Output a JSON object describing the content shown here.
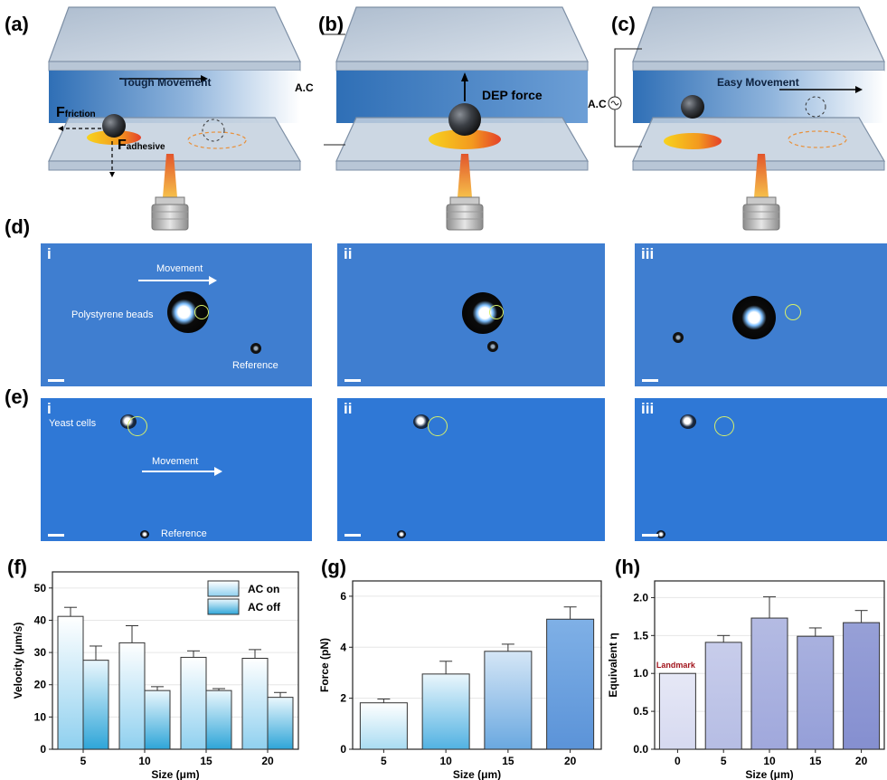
{
  "panel_labels": {
    "a": "(a)",
    "b": "(b)",
    "c": "(c)",
    "d": "(d)",
    "e": "(e)",
    "f": "(f)",
    "g": "(g)",
    "h": "(h)"
  },
  "schematic": {
    "a": {
      "movement": "Tough Movement",
      "friction_F": "F",
      "friction_sub": "friction",
      "adhesive_F": "F",
      "adhesive_sub": "adhesive"
    },
    "b": {
      "force": "DEP force",
      "ac": "A.C"
    },
    "c": {
      "movement": "Easy Movement",
      "ac": "A.C"
    }
  },
  "micro_d": {
    "roman": [
      "i",
      "ii",
      "iii"
    ],
    "movement": "Movement",
    "beads": "Polystyrene beads",
    "reference": "Reference"
  },
  "micro_e": {
    "roman": [
      "i",
      "ii",
      "iii"
    ],
    "cells": "Yeast cells",
    "movement": "Movement",
    "reference": "Reference"
  },
  "colors": {
    "micro_d_bg": "#3f7ed0",
    "micro_e_bg": "#2f78d6",
    "channel_blue": "#2f6fb6"
  },
  "chart_data": [
    {
      "type": "bar",
      "panel": "f",
      "categories": [
        "5",
        "10",
        "15",
        "20"
      ],
      "series": [
        {
          "name": "AC on",
          "values": [
            41.2,
            33.0,
            28.5,
            28.2
          ],
          "errors": [
            2.8,
            5.3,
            2.0,
            2.7
          ]
        },
        {
          "name": "AC off",
          "values": [
            27.6,
            18.2,
            18.2,
            16.1
          ],
          "errors": [
            4.4,
            1.2,
            0.6,
            1.5
          ]
        }
      ],
      "xlabel": "Size (μm)",
      "ylabel": "Velocity (μm/s)",
      "ylim": [
        0,
        55
      ],
      "yticks": [
        "0",
        "10",
        "20",
        "30",
        "40",
        "50"
      ],
      "legend": "top-right"
    },
    {
      "type": "bar",
      "panel": "g",
      "categories": [
        "5",
        "10",
        "15",
        "20"
      ],
      "values": [
        1.82,
        2.95,
        3.84,
        5.1
      ],
      "errors": [
        0.15,
        0.5,
        0.28,
        0.48
      ],
      "xlabel": "Size (μm)",
      "ylabel": "Force (pN)",
      "ylim": [
        0,
        6.6
      ],
      "yticks": [
        "0",
        "2",
        "4",
        "6"
      ]
    },
    {
      "type": "bar",
      "panel": "h",
      "categories": [
        "0",
        "5",
        "10",
        "15",
        "20"
      ],
      "values": [
        1.0,
        1.41,
        1.73,
        1.49,
        1.67
      ],
      "errors": [
        0,
        0.09,
        0.28,
        0.11,
        0.16
      ],
      "xlabel": "Size (μm)",
      "ylabel": "Equivalent η",
      "ylim": [
        0,
        2.22
      ],
      "yticks": [
        "0.0",
        "0.5",
        "1.0",
        "1.5",
        "2.0"
      ],
      "annotation": "Landmark"
    }
  ]
}
